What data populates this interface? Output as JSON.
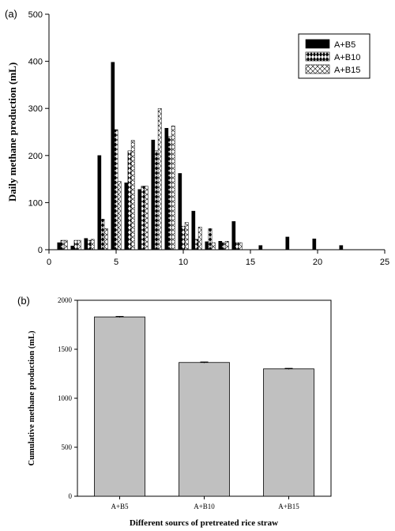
{
  "patterns": {
    "A+B5": "solid-black",
    "A+B10": "black-white-diamonds",
    "A+B15": "white-crosshatch"
  },
  "chart_data": [
    {
      "panel_label": "(a)",
      "type": "bar",
      "xlabel": "",
      "ylabel": "Daily methane production (mL)",
      "xlim": [
        0,
        25
      ],
      "ylim": [
        0,
        500
      ],
      "xticks": [
        0,
        5,
        10,
        15,
        20,
        25
      ],
      "yticks": [
        0,
        100,
        200,
        300,
        400,
        500
      ],
      "grid": false,
      "legend_position": "top-right",
      "x": [
        1,
        2,
        3,
        4,
        5,
        6,
        7,
        8,
        9,
        10,
        11,
        12,
        13,
        14,
        15,
        16,
        17,
        18,
        19,
        20,
        21,
        22
      ],
      "series": [
        {
          "name": "A+B5",
          "values": [
            15,
            8,
            24,
            200,
            398,
            142,
            128,
            233,
            258,
            162,
            82,
            17,
            18,
            60,
            0,
            9,
            0,
            27,
            0,
            23,
            0,
            9
          ]
        },
        {
          "name": "A+B10",
          "values": [
            20,
            20,
            20,
            65,
            255,
            210,
            135,
            210,
            240,
            50,
            22,
            45,
            15,
            15,
            0,
            0,
            0,
            0,
            0,
            0,
            0,
            0
          ]
        },
        {
          "name": "A+B15",
          "values": [
            20,
            20,
            22,
            45,
            145,
            232,
            135,
            300,
            263,
            58,
            48,
            15,
            18,
            15,
            0,
            0,
            0,
            0,
            0,
            0,
            0,
            0
          ]
        }
      ]
    },
    {
      "panel_label": "(b)",
      "type": "bar",
      "xlabel": "Different sourcs of pretreated rice straw",
      "ylabel": "Cumulative methane production (mL)",
      "categories": [
        "A+B5",
        "A+B10",
        "A+B15"
      ],
      "values": [
        1830,
        1365,
        1300
      ],
      "errors": [
        5,
        5,
        5
      ],
      "ylim": [
        0,
        2000
      ],
      "yticks": [
        0,
        500,
        1000,
        1500,
        2000
      ],
      "bar_color": "#c0c0c0",
      "grid": false
    }
  ]
}
